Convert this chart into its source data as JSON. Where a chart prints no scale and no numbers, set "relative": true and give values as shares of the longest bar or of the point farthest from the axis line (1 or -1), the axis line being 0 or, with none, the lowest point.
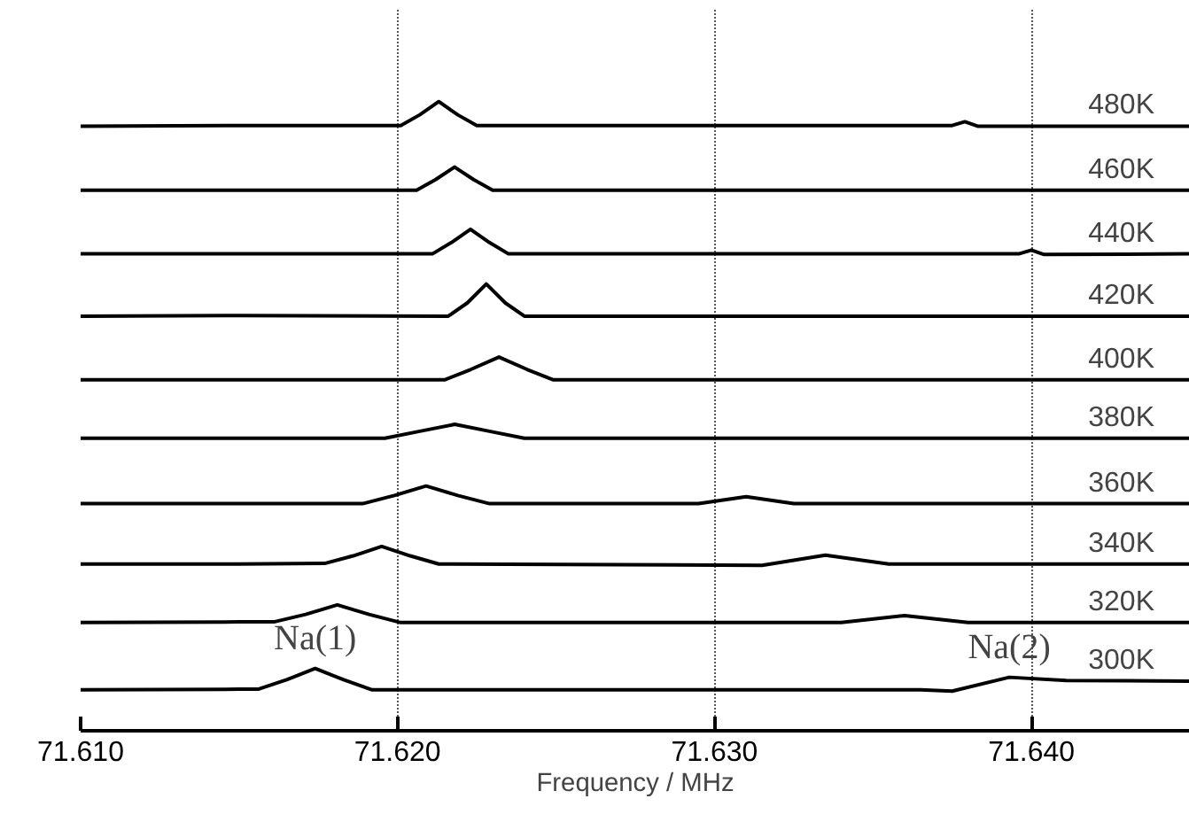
{
  "chart_data": {
    "type": "line",
    "relative": true,
    "xlabel": "Frequency / MHz",
    "xlim": [
      71.61,
      71.645
    ],
    "xticks": [
      {
        "value": 71.61,
        "label": "71.610"
      },
      {
        "value": 71.62,
        "label": "71.620"
      },
      {
        "value": 71.63,
        "label": "71.630"
      },
      {
        "value": 71.64,
        "label": "71.640"
      }
    ],
    "grid": "x",
    "tick_labels": "x",
    "marker": "none",
    "line_style": "solid",
    "series": [
      {
        "name": "480K",
        "color": "#000000",
        "x": [
          71.61,
          71.615,
          71.6201,
          71.6207,
          71.6213,
          71.6219,
          71.6225,
          71.63,
          71.6375,
          71.6379,
          71.6383,
          71.645
        ],
        "values": [
          0.961,
          0.962,
          0.962,
          0.979,
          1.0,
          0.979,
          0.962,
          0.962,
          0.962,
          0.968,
          0.961,
          0.961
        ]
      },
      {
        "name": "460K",
        "color": "#000000",
        "x": [
          71.61,
          71.615,
          71.6206,
          71.6212,
          71.6218,
          71.6224,
          71.623,
          71.63,
          71.645
        ],
        "values": [
          0.859,
          0.859,
          0.859,
          0.876,
          0.896,
          0.876,
          0.859,
          0.859,
          0.859
        ]
      },
      {
        "name": "440K",
        "color": "#000000",
        "x": [
          71.61,
          71.615,
          71.6211,
          71.6217,
          71.6223,
          71.6229,
          71.6235,
          71.63,
          71.6396,
          71.64,
          71.6404,
          71.645
        ],
        "values": [
          0.758,
          0.758,
          0.758,
          0.776,
          0.797,
          0.776,
          0.758,
          0.758,
          0.758,
          0.764,
          0.757,
          0.758
        ]
      },
      {
        "name": "420K",
        "color": "#000000",
        "x": [
          71.61,
          71.615,
          71.6216,
          71.6222,
          71.6228,
          71.6234,
          71.624,
          71.63,
          71.645
        ],
        "values": [
          0.659,
          0.66,
          0.659,
          0.68,
          0.71,
          0.68,
          0.659,
          0.659,
          0.659
        ]
      },
      {
        "name": "400K",
        "color": "#000000",
        "x": [
          71.61,
          71.615,
          71.6215,
          71.6223,
          71.6232,
          71.6241,
          71.6249,
          71.63,
          71.645
        ],
        "values": [
          0.558,
          0.558,
          0.558,
          0.574,
          0.594,
          0.574,
          0.558,
          0.558,
          0.558
        ]
      },
      {
        "name": "380K",
        "color": "#000000",
        "x": [
          71.61,
          71.615,
          71.6196,
          71.6207,
          71.6218,
          71.6229,
          71.624,
          71.63,
          71.645
        ],
        "values": [
          0.465,
          0.465,
          0.465,
          0.476,
          0.487,
          0.476,
          0.465,
          0.465,
          0.465
        ]
      },
      {
        "name": "360K",
        "color": "#000000",
        "x": [
          71.61,
          71.615,
          71.6189,
          71.6199,
          71.6209,
          71.6219,
          71.6229,
          71.6295,
          71.631,
          71.6325,
          71.645
        ],
        "values": [
          0.361,
          0.361,
          0.361,
          0.374,
          0.389,
          0.374,
          0.361,
          0.361,
          0.372,
          0.361,
          0.361
        ]
      },
      {
        "name": "340K",
        "color": "#000000",
        "x": [
          71.61,
          71.615,
          71.6177,
          71.6186,
          71.6195,
          71.6204,
          71.6213,
          71.6315,
          71.6335,
          71.6355,
          71.645
        ],
        "values": [
          0.265,
          0.265,
          0.266,
          0.278,
          0.293,
          0.278,
          0.265,
          0.263,
          0.279,
          0.265,
          0.265
        ]
      },
      {
        "name": "320K",
        "color": "#000000",
        "x": [
          71.61,
          71.615,
          71.6161,
          71.6171,
          71.6181,
          71.6191,
          71.6201,
          71.634,
          71.636,
          71.638,
          71.645
        ],
        "values": [
          0.172,
          0.173,
          0.173,
          0.185,
          0.2,
          0.185,
          0.172,
          0.172,
          0.183,
          0.172,
          0.172
        ]
      },
      {
        "name": "300K",
        "color": "#000000",
        "x": [
          71.61,
          71.615,
          71.6156,
          71.6165,
          71.6174,
          71.6183,
          71.6192,
          71.6365,
          71.6375,
          71.6393,
          71.6411,
          71.645
        ],
        "values": [
          0.065,
          0.066,
          0.066,
          0.081,
          0.099,
          0.081,
          0.065,
          0.065,
          0.063,
          0.085,
          0.08,
          0.079
        ]
      }
    ],
    "annotations": [
      {
        "text": "Na(1)",
        "x": 71.6174,
        "y": 0.099
      },
      {
        "text": "Na(2)",
        "x": 71.6393,
        "y": 0.085
      }
    ]
  }
}
